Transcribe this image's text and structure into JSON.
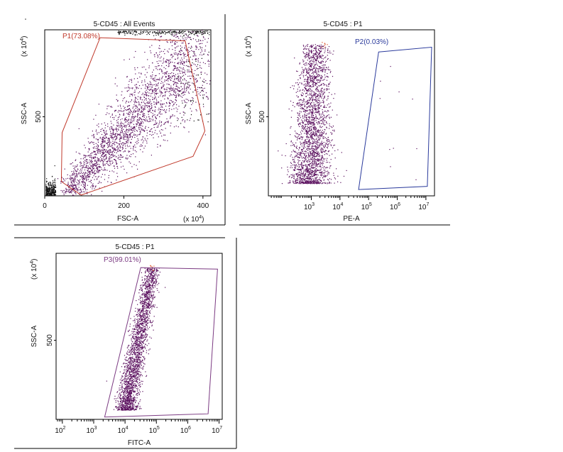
{
  "chart_data": [
    {
      "type": "scatter",
      "title": "5-CD45 : All Events",
      "xlabel": "FSC-A",
      "ylabel": "SSC-A",
      "x_scale_label": "(x 10^4)",
      "y_scale_label": "(x 10^4)",
      "x_scale": "linear",
      "xlim": [
        0,
        420
      ],
      "ylim": [
        0,
        1050
      ],
      "x_ticks": [
        {
          "value": 0,
          "label": "0"
        },
        {
          "value": 200,
          "label": "200"
        },
        {
          "value": 400,
          "label": "400"
        }
      ],
      "y_ticks": [
        {
          "value": 500,
          "label": "500"
        }
      ],
      "dot_color": "#5a0f5e",
      "outside_color": "#111111",
      "gate": {
        "name": "P1",
        "label": "P1(73.08%)",
        "percent": 73.08,
        "color": "#c0392b",
        "vertices": [
          [
            42,
            90
          ],
          [
            44,
            400
          ],
          [
            140,
            1000
          ],
          [
            355,
            980
          ],
          [
            405,
            410
          ],
          [
            375,
            250
          ],
          [
            92,
            5
          ]
        ]
      }
    },
    {
      "type": "scatter",
      "title": "5-CD45 : P1",
      "xlabel": "PE-A",
      "ylabel": "SSC-A",
      "y_scale_label": "(x 10^4)",
      "x_scale": "log",
      "xlim": [
        1.5,
        7.3
      ],
      "ylim": [
        0,
        1050
      ],
      "x_ticks": [
        {
          "value": 3,
          "label": "3"
        },
        {
          "value": 4,
          "label": "4"
        },
        {
          "value": 5,
          "label": "5"
        },
        {
          "value": 6,
          "label": "6"
        },
        {
          "value": 7,
          "label": "7"
        }
      ],
      "x_tick_base": "10",
      "y_ticks": [
        {
          "value": 500,
          "label": "500"
        }
      ],
      "dot_color": "#5a0f5e",
      "gate": {
        "name": "P2",
        "label": "P2(0.03%)",
        "percent": 0.03,
        "color": "#2a3a9c",
        "vertices": [
          [
            5.35,
            910
          ],
          [
            7.2,
            940
          ],
          [
            7.05,
            60
          ],
          [
            4.65,
            40
          ]
        ]
      }
    },
    {
      "type": "scatter",
      "title": "5-CD45 : P1",
      "xlabel": "FITC-A",
      "ylabel": "SSC-A",
      "y_scale_label": "(x 10^4)",
      "x_scale": "log",
      "xlim": [
        1.8,
        7.1
      ],
      "ylim": [
        0,
        1050
      ],
      "x_ticks": [
        {
          "value": 2,
          "label": "2"
        },
        {
          "value": 3,
          "label": "3"
        },
        {
          "value": 4,
          "label": "4"
        },
        {
          "value": 5,
          "label": "5"
        },
        {
          "value": 6,
          "label": "6"
        },
        {
          "value": 7,
          "label": "7"
        }
      ],
      "x_tick_base": "10",
      "y_ticks": [
        {
          "value": 500,
          "label": "500"
        }
      ],
      "dot_color": "#5a0f5e",
      "gate": {
        "name": "P3",
        "label": "P3(99.01%)",
        "percent": 99.01,
        "color": "#7b3a82",
        "vertices": [
          [
            4.5,
            960
          ],
          [
            6.95,
            950
          ],
          [
            6.65,
            35
          ],
          [
            3.35,
            15
          ]
        ]
      }
    }
  ]
}
